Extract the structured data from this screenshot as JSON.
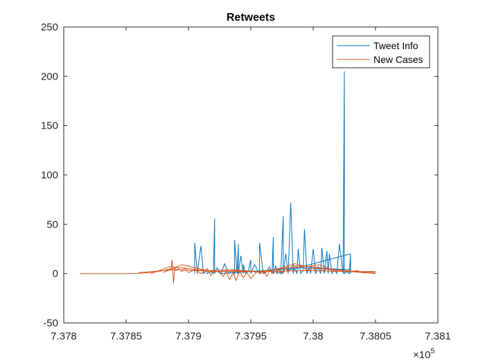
{
  "chart_data": {
    "type": "line",
    "title": "Retweets",
    "xlabel": "",
    "ylabel": "",
    "xlim": [
      737800,
      738100
    ],
    "ylim": [
      -50,
      250
    ],
    "x_tick_labels": [
      "7.378",
      "7.3785",
      "7.379",
      "7.3795",
      "7.38",
      "7.3805",
      "7.381"
    ],
    "x_tick_values": [
      737800,
      737850,
      737900,
      737950,
      738000,
      738050,
      738100
    ],
    "y_tick_values": [
      -50,
      0,
      50,
      100,
      150,
      200,
      250
    ],
    "x_exponent": {
      "base": "×10",
      "power": "5"
    },
    "grid": false,
    "legend_position": "top-right",
    "series": [
      {
        "name": "Tweet Info",
        "color": "#0072BD",
        "segments": [
          {
            "x": [
              737905,
              737905,
              737907,
              737907,
              737910,
              737912,
              737915,
              737915,
              737918,
              737920,
              737921,
              737921,
              737923,
              737926,
              737929,
              737932,
              737935,
              737937,
              737937,
              737939,
              737940,
              737940,
              737942,
              737944,
              737944,
              737946,
              737948,
              737950,
              737950,
              737953,
              737957,
              737957,
              737960,
              737962,
              737965,
              737967,
              737968,
              737968,
              737970,
              737971,
              737972,
              737974,
              737976,
              737976,
              737978,
              737980,
              737982,
              737984,
              737985,
              737987,
              737988,
              737990,
              737992,
              737993,
              737995,
              737997,
              737998,
              738000,
              738002,
              738004,
              738006,
              738007,
              738009,
              738011,
              738012,
              738013,
              738015,
              738017,
              738019,
              738021,
              738024,
              738025,
              738025,
              738027,
              738029,
              738030,
              738030
            ],
            "y": [
              0,
              31,
              2,
              0,
              28,
              0,
              3,
              0,
              2,
              0,
              56,
              0,
              6,
              0,
              10,
              0,
              3,
              0,
              34,
              0,
              30,
              0,
              18,
              0,
              9,
              0,
              3,
              14,
              0,
              9,
              0,
              31,
              0,
              1,
              7,
              0,
              37,
              0,
              8,
              0,
              5,
              0,
              58,
              0,
              20,
              0,
              72,
              0,
              6,
              0,
              25,
              0,
              3,
              45,
              0,
              6,
              0,
              25,
              0,
              7,
              0,
              26,
              0,
              23,
              0,
              20,
              0,
              5,
              0,
              30,
              0,
              205,
              0,
              2,
              0,
              20,
              0
            ]
          },
          {
            "x": [
              737970,
              738030
            ],
            "y": [
              0,
              20
            ]
          },
          {
            "x": [
              737925,
              737960,
              737990,
              738030
            ],
            "y": [
              0,
              3,
              6,
              4
            ]
          }
        ]
      },
      {
        "name": "New Cases",
        "color": "#D95319",
        "segments": [
          {
            "x": [
              737813,
              737855,
              737870,
              737880,
              737886,
              737887,
              737888,
              737889,
              737890,
              737892,
              737895,
              737897,
              737900,
              737905,
              737910,
              737915,
              737918,
              737920,
              737925,
              737928,
              737930,
              737933,
              737936,
              737938,
              737941,
              737944,
              737947,
              737950,
              737955,
              737958,
              737960,
              737963,
              737965,
              737968,
              737972,
              737975,
              737978,
              737980,
              737984,
              737988,
              737991,
              737995,
              737998,
              738001,
              738004,
              738008,
              738012,
              738016,
              738020,
              738025,
              738030,
              738035,
              738040,
              738045,
              738050
            ],
            "y": [
              0,
              0,
              1,
              3,
              5,
              14,
              -10,
              6,
              3,
              5,
              2,
              6,
              1,
              4,
              0,
              5,
              -2,
              3,
              1,
              -3,
              2,
              -6,
              1,
              -7,
              2,
              -4,
              1,
              -5,
              2,
              0,
              3,
              -3,
              4,
              0,
              5,
              0,
              6,
              2,
              9,
              5,
              8,
              3,
              7,
              4,
              6,
              3,
              5,
              2,
              4,
              3,
              2,
              3,
              1,
              2,
              1
            ]
          },
          {
            "x": [
              737870,
              737885,
              737900,
              737920,
              737940,
              737960,
              737975,
              737985,
              737995,
              738005,
              738015,
              738030,
              738050
            ],
            "y": [
              0,
              7,
              5,
              2,
              3,
              1,
              6,
              10,
              7,
              9,
              4,
              2,
              0
            ]
          },
          {
            "x": [
              737880,
              737895,
              737915,
              737935,
              737955,
              737975,
              737990,
              738005,
              738025,
              738050
            ],
            "y": [
              1,
              9,
              3,
              4,
              2,
              5,
              8,
              6,
              3,
              1
            ]
          },
          {
            "x": [
              737860,
              737890,
              737925,
              737960,
              737995,
              738030,
              738050
            ],
            "y": [
              1,
              4,
              2,
              2,
              3,
              2,
              2
            ]
          }
        ]
      }
    ]
  }
}
